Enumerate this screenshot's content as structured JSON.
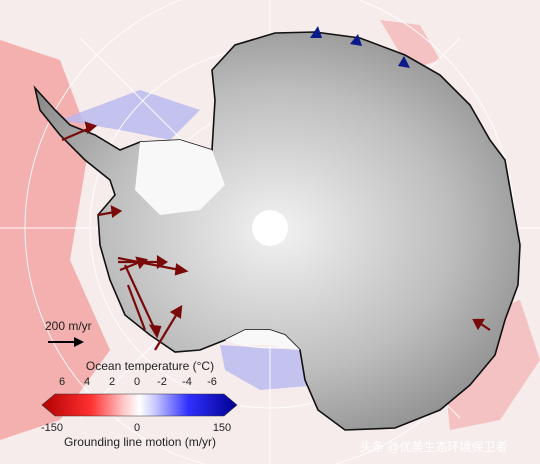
{
  "scale_arrow_label": "200 m/yr",
  "ocean_temperature": {
    "title": "Ocean temperature (°C)",
    "ticks": [
      6,
      4,
      2,
      0,
      -2,
      -4,
      -6
    ]
  },
  "grounding_line_motion": {
    "title": "Grounding line motion (m/yr)",
    "ticks": [
      -150,
      0,
      150
    ]
  },
  "watermark": "头条 @优美生态环境保卫者"
}
